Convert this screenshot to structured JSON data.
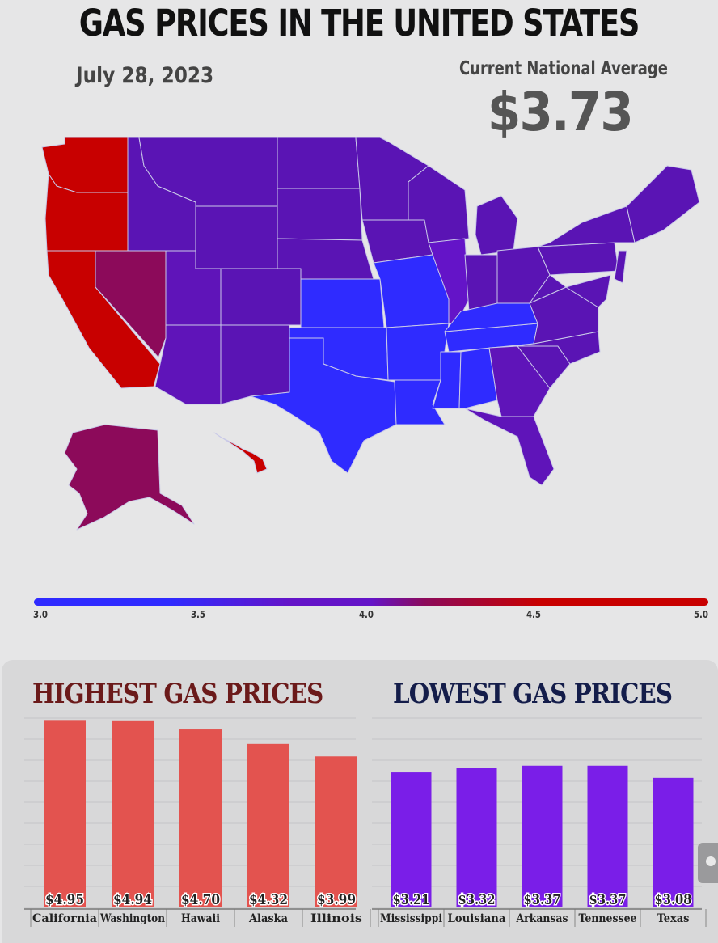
{
  "header": {
    "title": "GAS PRICES IN THE UNITED STATES",
    "date": "July 28, 2023",
    "national_average_label": "Current National Average",
    "national_average_value": "$3.73"
  },
  "legend": {
    "scale_min": 3.0,
    "scale_max": 5.0,
    "ticks": [
      "3.0",
      "3.5",
      "4.0",
      "4.5",
      "5.0"
    ],
    "colors": {
      "low": "#2f2bff",
      "mid": "#6414c8",
      "high": "#c80000"
    }
  },
  "chart_data": [
    {
      "type": "bar",
      "title": "HIGHEST GAS PRICES",
      "categories": [
        "California",
        "Washington",
        "Hawaii",
        "Alaska",
        "Illinois"
      ],
      "values": [
        4.95,
        4.94,
        4.7,
        4.32,
        3.99
      ],
      "labels": [
        "$4.95",
        "$4.94",
        "$4.70",
        "$4.32",
        "$3.99"
      ],
      "color": "#e3534f",
      "title_color": "#6b1a1a",
      "ylim": [
        0,
        5.0
      ],
      "grid": true
    },
    {
      "type": "bar",
      "title": "LOWEST GAS PRICES",
      "categories": [
        "Mississippi",
        "Louisiana",
        "Arkansas",
        "Tennessee",
        "Texas"
      ],
      "values": [
        3.21,
        3.32,
        3.37,
        3.37,
        3.08
      ],
      "labels": [
        "$3.21",
        "$3.32",
        "$3.37",
        "$3.37",
        "$3.08"
      ],
      "color": "#7a1ee8",
      "title_color": "#141d4a",
      "ylim": [
        0,
        4.5
      ],
      "grid": true
    }
  ]
}
